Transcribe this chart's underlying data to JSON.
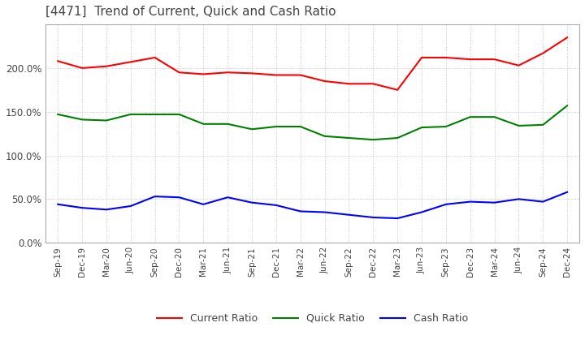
{
  "title": "[4471]  Trend of Current, Quick and Cash Ratio",
  "title_fontsize": 11,
  "title_color": "#444444",
  "x_labels": [
    "Sep-19",
    "Dec-19",
    "Mar-20",
    "Jun-20",
    "Sep-20",
    "Dec-20",
    "Mar-21",
    "Jun-21",
    "Sep-21",
    "Dec-21",
    "Mar-22",
    "Jun-22",
    "Sep-22",
    "Dec-22",
    "Mar-23",
    "Jun-23",
    "Sep-23",
    "Dec-23",
    "Mar-24",
    "Jun-24",
    "Sep-24",
    "Dec-24"
  ],
  "current_ratio": [
    208,
    200,
    202,
    207,
    212,
    195,
    193,
    195,
    194,
    192,
    192,
    185,
    182,
    182,
    175,
    212,
    212,
    210,
    210,
    203,
    217,
    235
  ],
  "quick_ratio": [
    147,
    141,
    140,
    147,
    147,
    147,
    136,
    136,
    130,
    133,
    133,
    122,
    120,
    118,
    120,
    132,
    133,
    144,
    144,
    134,
    135,
    157
  ],
  "cash_ratio": [
    44,
    40,
    38,
    42,
    53,
    52,
    44,
    52,
    46,
    43,
    36,
    35,
    32,
    29,
    28,
    35,
    44,
    47,
    46,
    50,
    47,
    58
  ],
  "current_color": "#ff0000",
  "quick_color": "#008000",
  "cash_color": "#0000ff",
  "ylim": [
    0,
    250
  ],
  "yticks": [
    0,
    50,
    100,
    150,
    200
  ],
  "legend_labels": [
    "Current Ratio",
    "Quick Ratio",
    "Cash Ratio"
  ],
  "background_color": "#ffffff",
  "grid_color": "#aaaaaa"
}
